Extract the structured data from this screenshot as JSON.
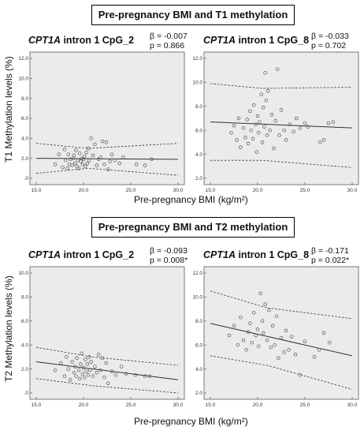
{
  "sections": [
    {
      "title": "Pre-pregnancy BMI and T1 methylation",
      "ylabel": "T1 Methylation levels (%)",
      "xlabel": "Pre-pregnancy BMI (kg/m²)"
    },
    {
      "title": "Pre-pregnancy BMI and T2 methylation",
      "ylabel": "T2 Methylation levels (%)",
      "xlabel": "Pre-pregnancy BMI (kg/m²)"
    }
  ],
  "panels": [
    {
      "gene": "CPT1A",
      "title_rest": " intron 1 CpG_2",
      "beta": "β = -0.007",
      "p": "p = 0.866"
    },
    {
      "gene": "CPT1A",
      "title_rest": " intron 1 CpG_8",
      "beta": "β = -0.033",
      "p": "p = 0.702"
    },
    {
      "gene": "CPT1A",
      "title_rest": " intron 1 CpG_2",
      "beta": "β = -0.093",
      "p": "p = 0.008*"
    },
    {
      "gene": "CPT1A",
      "title_rest": " intron 1 CpG_8",
      "beta": "β = -0.171",
      "p": "p = 0.022*"
    }
  ],
  "chart_data": [
    {
      "type": "scatter",
      "title": "CPT1A intron 1 CpG_2",
      "xlabel": "Pre-pregnancy BMI (kg/m²)",
      "ylabel": "T1 Methylation levels (%)",
      "xlim": [
        15,
        30
      ],
      "ylim": [
        0,
        12
      ],
      "xticks": [
        "15.0",
        "20.0",
        "25.0",
        "30.0"
      ],
      "yticks": [
        ".0",
        "2.0",
        "4.0",
        "6.0",
        "8.0",
        "10.0",
        "12.0"
      ],
      "grid": false,
      "fit": {
        "x": [
          15,
          30
        ],
        "y": [
          2.0,
          1.9
        ]
      },
      "ci_upper": {
        "x": [
          15,
          20.5,
          30
        ],
        "y": [
          3.5,
          3.0,
          3.5
        ]
      },
      "ci_lower": {
        "x": [
          15,
          20.5,
          30
        ],
        "y": [
          0.5,
          1.0,
          0.3
        ]
      },
      "points": {
        "x": [
          17.0,
          17.4,
          17.8,
          18.0,
          18.1,
          18.3,
          18.4,
          18.5,
          18.6,
          18.8,
          18.9,
          19.0,
          19.1,
          19.2,
          19.3,
          19.4,
          19.5,
          19.6,
          19.7,
          19.8,
          19.9,
          20.0,
          20.1,
          20.2,
          20.3,
          20.4,
          20.5,
          20.6,
          20.8,
          21.0,
          21.2,
          21.4,
          21.6,
          21.8,
          22.0,
          22.2,
          22.4,
          22.6,
          22.8,
          23.0,
          23.3,
          23.8,
          24.2,
          25.6,
          26.5,
          27.2
        ],
        "y": [
          1.4,
          2.4,
          1.1,
          2.9,
          1.8,
          1.0,
          2.4,
          1.4,
          1.9,
          1.3,
          2.0,
          2.3,
          1.5,
          2.8,
          1.2,
          1.8,
          1.0,
          2.5,
          1.7,
          2.0,
          1.4,
          1.9,
          2.2,
          1.2,
          2.6,
          1.5,
          3.0,
          1.8,
          4.0,
          2.3,
          3.4,
          1.3,
          1.9,
          2.1,
          3.7,
          1.4,
          3.6,
          0.9,
          1.7,
          2.4,
          1.8,
          1.5,
          2.1,
          1.4,
          1.3,
          1.9
        ]
      }
    },
    {
      "type": "scatter",
      "title": "CPT1A intron 1 CpG_8",
      "xlabel": "Pre-pregnancy BMI (kg/m²)",
      "ylabel": "T1 Methylation levels (%)",
      "xlim": [
        15,
        30
      ],
      "ylim": [
        2,
        12
      ],
      "xticks": [
        "15.0",
        "20.0",
        "25.0",
        "30.0"
      ],
      "yticks": [
        "2.0",
        "4.0",
        "6.0",
        "8.0",
        "10.0",
        "12.0"
      ],
      "grid": false,
      "fit": {
        "x": [
          15,
          30
        ],
        "y": [
          6.7,
          6.2
        ]
      },
      "ci_upper": {
        "x": [
          15,
          20.5,
          30
        ],
        "y": [
          9.9,
          9.5,
          9.6
        ]
      },
      "ci_lower": {
        "x": [
          15,
          20.5,
          30
        ],
        "y": [
          3.5,
          3.5,
          2.9
        ]
      },
      "points": {
        "x": [
          17.2,
          17.5,
          17.8,
          18.0,
          18.2,
          18.5,
          18.7,
          18.9,
          19.0,
          19.2,
          19.3,
          19.5,
          19.6,
          19.8,
          19.9,
          20.0,
          20.1,
          20.2,
          20.4,
          20.5,
          20.6,
          20.7,
          20.8,
          20.9,
          21.0,
          21.1,
          21.3,
          21.5,
          21.7,
          21.9,
          22.1,
          22.3,
          22.5,
          22.8,
          23.0,
          23.4,
          23.8,
          24.1,
          24.5,
          25.0,
          25.3,
          26.6,
          27.0,
          27.5,
          28.0
        ],
        "y": [
          5.8,
          6.4,
          5.2,
          7.0,
          4.6,
          6.2,
          5.4,
          6.9,
          4.9,
          7.6,
          6.0,
          5.3,
          8.1,
          6.5,
          4.2,
          7.2,
          5.8,
          6.7,
          9.0,
          5.0,
          7.9,
          6.3,
          10.8,
          8.5,
          5.6,
          9.3,
          6.0,
          7.3,
          4.5,
          6.8,
          11.1,
          5.6,
          7.7,
          6.0,
          5.2,
          6.5,
          5.9,
          7.0,
          6.2,
          6.6,
          6.3,
          5.0,
          5.2,
          6.6,
          6.7
        ]
      }
    },
    {
      "type": "scatter",
      "title": "CPT1A intron 1 CpG_2",
      "xlabel": "Pre-pregnancy BMI (kg/m²)",
      "ylabel": "T2 Methylation levels (%)",
      "xlim": [
        15,
        30
      ],
      "ylim": [
        0,
        10
      ],
      "xticks": [
        "15.0",
        "20.0",
        "25.0",
        "30.0"
      ],
      "yticks": [
        ".0",
        "2.0",
        "4.0",
        "6.0",
        "8.0",
        "10.0"
      ],
      "grid": false,
      "fit": {
        "x": [
          15,
          30
        ],
        "y": [
          2.6,
          1.1
        ]
      },
      "ci_upper": {
        "x": [
          15,
          21,
          30
        ],
        "y": [
          3.8,
          3.0,
          2.3
        ]
      },
      "ci_lower": {
        "x": [
          15,
          21,
          30
        ],
        "y": [
          1.2,
          0.6,
          0.0
        ]
      },
      "points": {
        "x": [
          17.0,
          17.6,
          18.0,
          18.2,
          18.4,
          18.6,
          18.8,
          19.0,
          19.1,
          19.2,
          19.3,
          19.5,
          19.6,
          19.7,
          19.8,
          19.9,
          20.0,
          20.1,
          20.2,
          20.3,
          20.4,
          20.5,
          20.6,
          20.7,
          20.8,
          21.0,
          21.2,
          21.4,
          21.6,
          21.8,
          22.0,
          22.2,
          22.4,
          22.6,
          23.0,
          23.4,
          24.0,
          24.5,
          25.5,
          26.5,
          27.0
        ],
        "y": [
          1.9,
          2.5,
          1.4,
          3.0,
          2.0,
          1.1,
          2.6,
          1.7,
          2.2,
          1.4,
          2.9,
          1.9,
          1.2,
          2.4,
          3.3,
          1.6,
          2.1,
          1.3,
          2.8,
          1.8,
          2.4,
          1.5,
          3.0,
          1.9,
          2.6,
          1.4,
          2.2,
          1.7,
          3.2,
          1.9,
          2.9,
          1.3,
          2.5,
          0.8,
          1.8,
          1.5,
          2.2,
          1.6,
          1.5,
          1.4,
          1.4
        ]
      }
    },
    {
      "type": "scatter",
      "title": "CPT1A intron 1 CpG_8",
      "xlabel": "Pre-pregnancy BMI (kg/m²)",
      "ylabel": "T2 Methylation levels (%)",
      "xlim": [
        15,
        30
      ],
      "ylim": [
        2,
        12
      ],
      "xticks": [
        "15.0",
        "20.0",
        "25.0",
        "30.0"
      ],
      "yticks": [
        "2.0",
        "4.0",
        "6.0",
        "8.0",
        "10.0",
        "12.0"
      ],
      "grid": false,
      "fit": {
        "x": [
          15,
          30
        ],
        "y": [
          7.8,
          5.1
        ]
      },
      "ci_upper": {
        "x": [
          15,
          21,
          30
        ],
        "y": [
          10.5,
          9.1,
          8.2
        ]
      },
      "ci_lower": {
        "x": [
          15,
          21,
          30
        ],
        "y": [
          5.1,
          4.3,
          2.3
        ]
      },
      "points": {
        "x": [
          17.0,
          17.5,
          17.9,
          18.2,
          18.5,
          18.8,
          19.0,
          19.2,
          19.4,
          19.6,
          19.8,
          20.0,
          20.1,
          20.3,
          20.5,
          20.6,
          20.8,
          21.0,
          21.2,
          21.4,
          21.6,
          21.8,
          22.0,
          22.2,
          22.5,
          22.8,
          23.0,
          23.3,
          23.6,
          24.0,
          24.5,
          25.0,
          26.0,
          26.5,
          27.0,
          27.6
        ],
        "y": [
          6.8,
          7.6,
          6.0,
          8.3,
          6.4,
          5.6,
          7.1,
          7.8,
          6.2,
          8.7,
          6.8,
          7.3,
          5.9,
          10.3,
          8.0,
          7.0,
          9.4,
          6.4,
          8.9,
          5.8,
          7.6,
          6.0,
          8.4,
          4.9,
          6.6,
          5.4,
          7.2,
          5.6,
          6.7,
          5.2,
          3.5,
          6.3,
          5.0,
          5.6,
          7.0,
          6.2
        ]
      }
    }
  ]
}
